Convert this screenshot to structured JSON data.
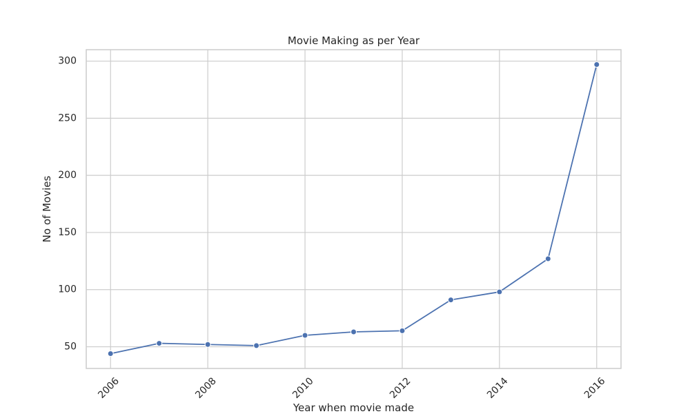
{
  "chart_data": {
    "type": "line",
    "title": "Movie Making as per Year",
    "xlabel": "Year when movie made",
    "ylabel": "No of Movies",
    "x": [
      2006,
      2007,
      2008,
      2009,
      2010,
      2011,
      2012,
      2013,
      2014,
      2015,
      2016
    ],
    "series": [
      {
        "values": [
          44,
          53,
          52,
          51,
          60,
          63,
          64,
          91,
          98,
          127,
          297
        ],
        "color": "#4c72b0"
      }
    ],
    "xlim": [
      2005.5,
      2016.5
    ],
    "ylim": [
      31,
      310
    ],
    "xticks": [
      2006,
      2008,
      2010,
      2012,
      2014,
      2016
    ],
    "yticks": [
      50,
      100,
      150,
      200,
      250,
      300
    ],
    "xtick_rotation": 45,
    "grid": true,
    "legend": false,
    "marker": "circle"
  }
}
